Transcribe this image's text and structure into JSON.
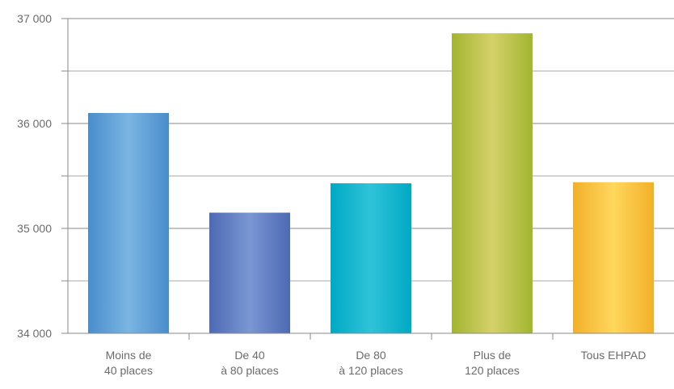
{
  "chart_data": {
    "type": "bar",
    "categories": [
      [
        "Moins de",
        "40 places"
      ],
      [
        "De 40",
        "à 80 places"
      ],
      [
        "De 80",
        "à 120 places"
      ],
      [
        "Plus de",
        "120 places"
      ],
      [
        "Tous EHPAD"
      ]
    ],
    "values": [
      36100,
      35150,
      35430,
      36860,
      35440
    ],
    "ylim": [
      34000,
      37000
    ],
    "y_ticks": [
      34000,
      35000,
      36000,
      37000
    ],
    "y_tick_labels": [
      "34 000",
      "35 000",
      "36 000",
      "37 000"
    ],
    "grid": true,
    "title": "",
    "xlabel": "",
    "ylabel": "",
    "bar_colors": [
      {
        "edge": "#4a8dcc",
        "mid": "#7ab5e2"
      },
      {
        "edge": "#4d69b3",
        "mid": "#7a97d3"
      },
      {
        "edge": "#00a9c4",
        "mid": "#2fc3d9"
      },
      {
        "edge": "#a2b530",
        "mid": "#d4d16a"
      },
      {
        "edge": "#f2b02a",
        "mid": "#ffd75c"
      }
    ]
  }
}
